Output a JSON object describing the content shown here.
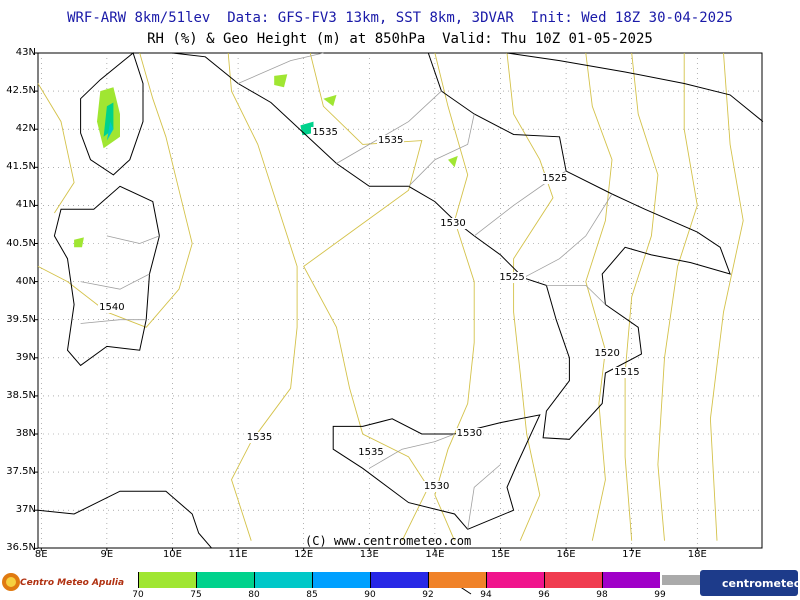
{
  "header": {
    "line1": "WRF-ARW 8km/51lev  Data: GFS-FV3 13km, SST 8km, 3DVAR  Init: Wed 18Z 30-04-2025",
    "line2": "RH (%) & Geo Height (m) at 850hPa  Valid: Thu 10Z 01-05-2025"
  },
  "lat_labels": [
    "43N",
    "42.5N",
    "42N",
    "41.5N",
    "41N",
    "40.5N",
    "40N",
    "39.5N",
    "39N",
    "38.5N",
    "38N",
    "37.5N",
    "37N",
    "36.5N"
  ],
  "lon_labels": [
    "8E",
    "9E",
    "10E",
    "11E",
    "12E",
    "13E",
    "14E",
    "15E",
    "16E",
    "17E",
    "18E"
  ],
  "contour_labels": [
    {
      "text": "1535",
      "lat": 41.95,
      "lon": 12.3
    },
    {
      "text": "1535",
      "lat": 41.85,
      "lon": 13.3
    },
    {
      "text": "1525",
      "lat": 41.35,
      "lon": 15.8
    },
    {
      "text": "1530",
      "lat": 40.75,
      "lon": 14.25
    },
    {
      "text": "1525",
      "lat": 40.05,
      "lon": 15.15
    },
    {
      "text": "1540",
      "lat": 39.65,
      "lon": 9.05
    },
    {
      "text": "1520",
      "lat": 39.05,
      "lon": 16.6
    },
    {
      "text": "1515",
      "lat": 38.8,
      "lon": 16.9
    },
    {
      "text": "1530",
      "lat": 38.0,
      "lon": 14.5
    },
    {
      "text": "1535",
      "lat": 37.95,
      "lon": 11.3
    },
    {
      "text": "1535",
      "lat": 37.75,
      "lon": 13.0
    },
    {
      "text": "1530",
      "lat": 37.3,
      "lon": 14.0
    }
  ],
  "copyright": "(C) www.centrometeo.com",
  "legend": {
    "ticks": [
      "70",
      "75",
      "80",
      "85",
      "90",
      "92",
      "94",
      "96",
      "98",
      "99"
    ],
    "colors": [
      "#a0e632",
      "#00d28c",
      "#00c8c8",
      "#00a0ff",
      "#2828e6",
      "#f08228",
      "#f0148c",
      "#f03c50",
      "#a000c8"
    ]
  },
  "logos": {
    "left": "Centro Meteo Apulia",
    "right": "centrometeo"
  },
  "colors": {
    "coast": "#000000",
    "borders": "#a0a0a0",
    "contours": "#d4c24a",
    "grid": "#808080"
  }
}
